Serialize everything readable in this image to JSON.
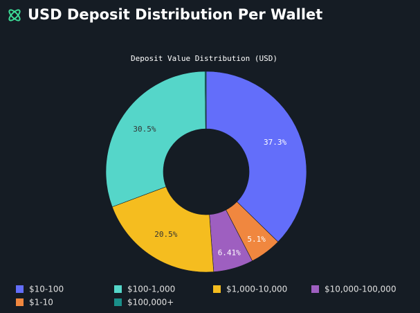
{
  "header": {
    "title": "USD Deposit Distribution Per Wallet"
  },
  "chart_data": {
    "type": "donut",
    "title": "Deposit Value Distribution (USD)",
    "categories": [
      "$10-100",
      "$1-10",
      "$10,000-100,000",
      "$1,000-10,000",
      "$100-1,000",
      "$100,000+"
    ],
    "values": [
      37.3,
      5.1,
      6.41,
      20.5,
      30.5,
      0.19
    ],
    "value_labels": [
      "37.3%",
      "5.1%",
      "6.41%",
      "20.5%",
      "30.5%",
      null
    ],
    "colors": [
      "#636efa",
      "#f0873f",
      "#9e5fc0",
      "#f5bd1f",
      "#55d6c9",
      "#1a8f8a"
    ],
    "legend": "bottom"
  }
}
